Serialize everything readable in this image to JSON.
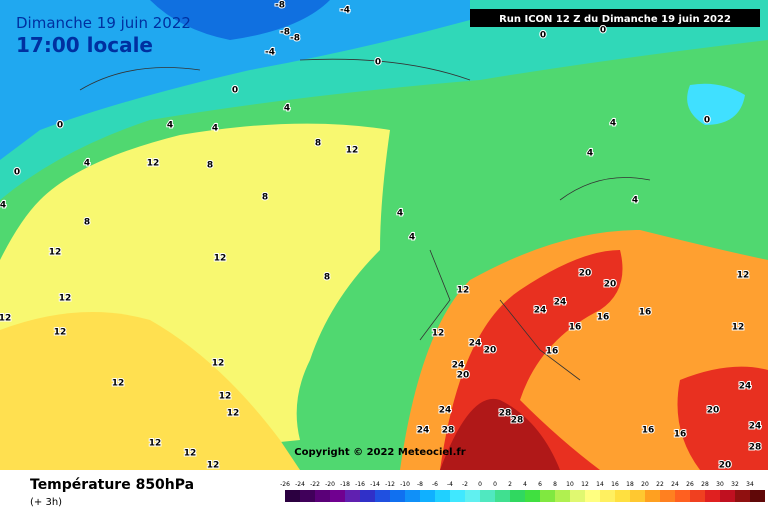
{
  "header": {
    "date": "Dimanche 19 juin 2022",
    "time": "17:00 locale",
    "run": "Run ICON 12 Z du Dimanche 19 juin 2022"
  },
  "copyright": "Copyright © 2022 Meteociel.fr",
  "footer": {
    "title": "Température 850hPa",
    "subtitle": "(+ 3h)"
  },
  "contour_labels": [
    -8,
    -4,
    -8,
    -8,
    -4,
    0,
    0,
    0,
    4,
    4,
    4,
    8,
    12,
    12,
    8,
    4,
    8,
    4,
    4,
    8,
    12,
    12,
    8,
    12,
    12,
    12,
    12,
    20,
    20,
    24,
    24,
    16,
    16,
    20,
    24,
    16,
    12,
    24,
    20,
    12,
    12,
    12,
    12,
    24,
    28,
    28,
    24,
    28,
    12,
    16,
    16,
    20,
    24,
    24,
    28,
    20,
    12,
    12,
    16,
    4,
    4,
    0,
    0,
    0,
    4,
    0,
    4,
    12,
    12
  ],
  "legend": {
    "labels": [
      -26,
      -24,
      -22,
      -20,
      -18,
      -16,
      -14,
      -12,
      -10,
      -8,
      -6,
      -4,
      -2,
      0,
      0,
      2,
      4,
      6,
      8,
      10,
      12,
      14,
      16,
      18,
      20,
      22,
      24,
      26,
      28,
      30,
      32,
      34
    ],
    "colors": [
      "#2b0040",
      "#40005a",
      "#5a0078",
      "#700090",
      "#6020b0",
      "#3030c8",
      "#2050e0",
      "#1070f0",
      "#1090f8",
      "#10b0ff",
      "#20d0ff",
      "#40e8ff",
      "#60f0f0",
      "#50e8c0",
      "#40e090",
      "#30d860",
      "#40e040",
      "#80e840",
      "#b0f050",
      "#e0f870",
      "#ffff80",
      "#fff060",
      "#ffe040",
      "#ffc830",
      "#ffa020",
      "#ff8020",
      "#ff6020",
      "#f04020",
      "#e02020",
      "#c01020",
      "#901010",
      "#600808"
    ]
  }
}
